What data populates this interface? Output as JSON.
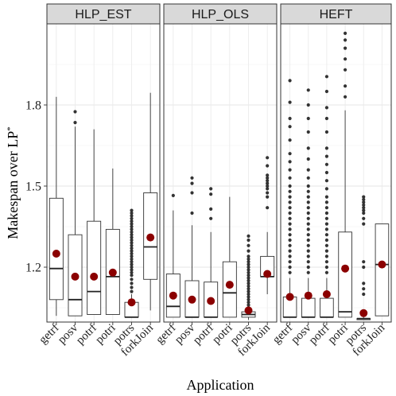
{
  "chart_data": {
    "type": "boxplot",
    "xlabel": "Application",
    "ylabel": "Makespan over LP",
    "ylabel_superscript": "*",
    "ylim": [
      1.0,
      2.08
    ],
    "yticks": [
      1.2,
      1.5,
      1.8
    ],
    "ytick_labels": [
      "1.2",
      "1.5",
      "1.8"
    ],
    "categories": [
      "getrf",
      "posv",
      "potrf",
      "potri",
      "potrs",
      "forkJoin"
    ],
    "mean_color": "#8b0000",
    "panels": [
      {
        "name": "HLP_EST",
        "boxes": [
          {
            "cat": "getrf",
            "lo": 1.02,
            "q1": 1.08,
            "med": 1.195,
            "q3": 1.455,
            "hi": 1.83,
            "mean": 1.25,
            "outliers": []
          },
          {
            "cat": "posv",
            "lo": 1.02,
            "q1": 1.02,
            "med": 1.08,
            "q3": 1.32,
            "hi": 1.72,
            "mean": 1.165,
            "outliers": [
              1.775,
              1.735
            ]
          },
          {
            "cat": "potrf",
            "lo": 1.025,
            "q1": 1.025,
            "med": 1.11,
            "q3": 1.37,
            "hi": 1.71,
            "mean": 1.165,
            "outliers": []
          },
          {
            "cat": "potri",
            "lo": 1.025,
            "q1": 1.025,
            "med": 1.165,
            "q3": 1.34,
            "hi": 1.565,
            "mean": 1.18,
            "outliers": []
          },
          {
            "cat": "potrs",
            "lo": 1.015,
            "q1": 1.015,
            "med": 1.015,
            "q3": 1.07,
            "hi": 1.1,
            "mean": 1.07,
            "outliers": [
              1.11,
              1.125,
              1.14,
              1.155,
              1.17,
              1.18,
              1.19,
              1.2,
              1.21,
              1.22,
              1.23,
              1.24,
              1.25,
              1.26,
              1.27,
              1.28,
              1.29,
              1.3,
              1.31,
              1.32,
              1.33,
              1.34,
              1.35,
              1.36,
              1.37,
              1.38,
              1.39,
              1.4,
              1.41
            ]
          },
          {
            "cat": "forkJoin",
            "lo": 1.04,
            "q1": 1.155,
            "med": 1.275,
            "q3": 1.475,
            "hi": 1.845,
            "mean": 1.31,
            "outliers": []
          }
        ]
      },
      {
        "name": "HLP_OLS",
        "boxes": [
          {
            "cat": "getrf",
            "lo": 1.015,
            "q1": 1.015,
            "med": 1.055,
            "q3": 1.175,
            "hi": 1.41,
            "mean": 1.095,
            "outliers": [
              1.465
            ]
          },
          {
            "cat": "posv",
            "lo": 1.015,
            "q1": 1.015,
            "med": 1.015,
            "q3": 1.15,
            "hi": 1.355,
            "mean": 1.08,
            "outliers": [
              1.53,
              1.51,
              1.475,
              1.4
            ]
          },
          {
            "cat": "potrf",
            "lo": 1.015,
            "q1": 1.015,
            "med": 1.015,
            "q3": 1.145,
            "hi": 1.33,
            "mean": 1.075,
            "outliers": [
              1.49,
              1.47,
              1.415,
              1.38
            ]
          },
          {
            "cat": "potri",
            "lo": 1.015,
            "q1": 1.015,
            "med": 1.105,
            "q3": 1.22,
            "hi": 1.46,
            "mean": 1.135,
            "outliers": []
          },
          {
            "cat": "potrs",
            "lo": 1.005,
            "q1": 1.015,
            "med": 1.025,
            "q3": 1.035,
            "hi": 1.05,
            "mean": 1.04,
            "outliers": [
              1.06,
              1.07,
              1.08,
              1.09,
              1.1,
              1.11,
              1.12,
              1.13,
              1.14,
              1.15,
              1.16,
              1.17,
              1.18,
              1.19,
              1.2,
              1.21,
              1.22,
              1.23,
              1.24,
              1.26,
              1.28,
              1.3,
              1.315
            ]
          },
          {
            "cat": "forkJoin",
            "lo": 1.1,
            "q1": 1.165,
            "med": 1.165,
            "q3": 1.24,
            "hi": 1.33,
            "mean": 1.175,
            "outliers": [
              1.42,
              1.46,
              1.475,
              1.49,
              1.5,
              1.51,
              1.52,
              1.53,
              1.54,
              1.575,
              1.605
            ]
          }
        ]
      },
      {
        "name": "HEFT",
        "boxes": [
          {
            "cat": "getrf",
            "lo": 1.015,
            "q1": 1.015,
            "med": 1.015,
            "q3": 1.09,
            "hi": 1.16,
            "mean": 1.09,
            "outliers": [
              1.18,
              1.2,
              1.22,
              1.24,
              1.26,
              1.28,
              1.3,
              1.32,
              1.34,
              1.36,
              1.38,
              1.4,
              1.42,
              1.44,
              1.46,
              1.48,
              1.5,
              1.53,
              1.56,
              1.59,
              1.62,
              1.67,
              1.72,
              1.75,
              1.81,
              1.89
            ]
          },
          {
            "cat": "posv",
            "lo": 1.015,
            "q1": 1.015,
            "med": 1.015,
            "q3": 1.085,
            "hi": 1.16,
            "mean": 1.095,
            "outliers": [
              1.18,
              1.2,
              1.22,
              1.24,
              1.26,
              1.28,
              1.3,
              1.32,
              1.34,
              1.36,
              1.38,
              1.4,
              1.42,
              1.44,
              1.46,
              1.48,
              1.5,
              1.53,
              1.56,
              1.6,
              1.64,
              1.7,
              1.75,
              1.8,
              1.855
            ]
          },
          {
            "cat": "potrf",
            "lo": 1.015,
            "q1": 1.015,
            "med": 1.015,
            "q3": 1.085,
            "hi": 1.16,
            "mean": 1.1,
            "outliers": [
              1.18,
              1.2,
              1.22,
              1.24,
              1.26,
              1.28,
              1.3,
              1.32,
              1.34,
              1.36,
              1.38,
              1.4,
              1.42,
              1.44,
              1.46,
              1.49,
              1.52,
              1.55,
              1.58,
              1.61,
              1.64,
              1.7,
              1.75,
              1.79,
              1.85,
              1.905
            ]
          },
          {
            "cat": "potri",
            "lo": 1.015,
            "q1": 1.015,
            "med": 1.035,
            "q3": 1.33,
            "hi": 1.78,
            "mean": 1.195,
            "outliers": [
              1.83,
              1.87,
              1.93,
              1.97,
              2.01,
              2.04,
              2.065
            ]
          },
          {
            "cat": "potrs",
            "lo": 1.01,
            "q1": 1.01,
            "med": 1.01,
            "q3": 1.01,
            "hi": 1.02,
            "mean": 1.03,
            "outliers": [
              1.1,
              1.12,
              1.14,
              1.2,
              1.22,
              1.36,
              1.38,
              1.4,
              1.41,
              1.42,
              1.43,
              1.44,
              1.45,
              1.46
            ]
          },
          {
            "cat": "forkJoin",
            "lo": 1.02,
            "q1": 1.02,
            "med": 1.21,
            "q3": 1.36,
            "hi": 1.36,
            "mean": 1.21,
            "outliers": []
          }
        ]
      }
    ]
  }
}
